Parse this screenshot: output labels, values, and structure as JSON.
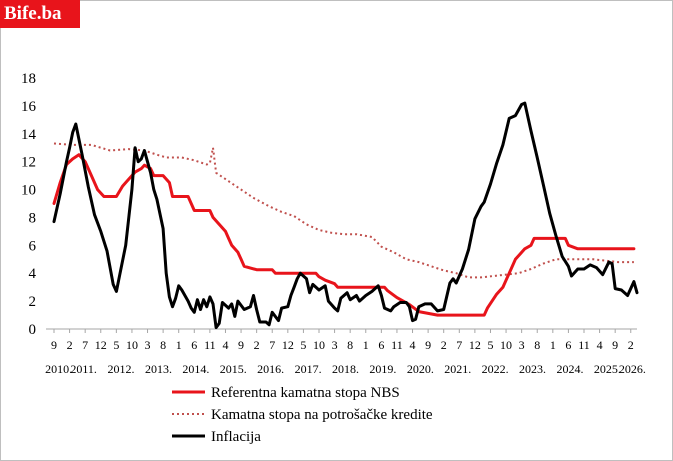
{
  "logo": {
    "text": "Bife.ba",
    "color": "#e8141b"
  },
  "chart_data": {
    "type": "line",
    "title": "",
    "xlabel": "",
    "ylabel": "",
    "ylim": [
      0,
      18
    ],
    "yticks": [
      0,
      2,
      4,
      6,
      8,
      10,
      12,
      14,
      16,
      18
    ],
    "grid": false,
    "legend_position": "bottom",
    "x_months": [
      "9",
      "2",
      "7",
      "12",
      "5",
      "10",
      "3",
      "8",
      "1",
      "6",
      "11",
      "4",
      "9",
      "2",
      "7",
      "12",
      "5",
      "10",
      "3",
      "8",
      "1",
      "6",
      "11",
      "4",
      "9",
      "2",
      "7",
      "12",
      "5",
      "10",
      "3",
      "8",
      "1",
      "6",
      "11",
      "4",
      "9",
      "2"
    ],
    "x_years": [
      "2010.",
      "2011.",
      "2012.",
      "2013.",
      "2014.",
      "2015.",
      "2016.",
      "2017.",
      "2018.",
      "2019.",
      "2020.",
      "2021.",
      "2022.",
      "2023.",
      "2024.",
      "2025.",
      "2026."
    ],
    "series": [
      {
        "name": "Referentna kamatna stopa  NBS",
        "color": "#e8141b",
        "style": "solid",
        "points": [
          [
            "2010-09",
            9.0
          ],
          [
            "2010-11",
            10.5
          ],
          [
            "2011-01",
            11.8
          ],
          [
            "2011-03",
            12.2
          ],
          [
            "2011-05",
            12.5
          ],
          [
            "2011-07",
            12.0
          ],
          [
            "2011-09",
            11.0
          ],
          [
            "2011-11",
            10.0
          ],
          [
            "2012-01",
            9.5
          ],
          [
            "2012-05",
            9.5
          ],
          [
            "2012-07",
            10.25
          ],
          [
            "2012-09",
            10.75
          ],
          [
            "2012-11",
            11.25
          ],
          [
            "2013-01",
            11.5
          ],
          [
            "2013-02",
            11.75
          ],
          [
            "2013-04",
            11.5
          ],
          [
            "2013-05",
            11.0
          ],
          [
            "2013-08",
            11.0
          ],
          [
            "2013-10",
            10.5
          ],
          [
            "2013-11",
            9.5
          ],
          [
            "2014-04",
            9.5
          ],
          [
            "2014-06",
            8.5
          ],
          [
            "2014-11",
            8.5
          ],
          [
            "2014-12",
            8.0
          ],
          [
            "2015-04",
            7.0
          ],
          [
            "2015-05",
            6.5
          ],
          [
            "2015-06",
            6.0
          ],
          [
            "2015-08",
            5.5
          ],
          [
            "2015-09",
            5.0
          ],
          [
            "2015-10",
            4.5
          ],
          [
            "2016-02",
            4.25
          ],
          [
            "2016-07",
            4.25
          ],
          [
            "2016-08",
            4.0
          ],
          [
            "2017-09",
            4.0
          ],
          [
            "2017-10",
            3.75
          ],
          [
            "2017-12",
            3.5
          ],
          [
            "2018-03",
            3.25
          ],
          [
            "2018-04",
            3.0
          ],
          [
            "2019-07",
            3.0
          ],
          [
            "2019-08",
            2.75
          ],
          [
            "2019-11",
            2.25
          ],
          [
            "2020-03",
            1.75
          ],
          [
            "2020-06",
            1.25
          ],
          [
            "2020-12",
            1.0
          ],
          [
            "2022-03",
            1.0
          ],
          [
            "2022-04",
            1.5
          ],
          [
            "2022-07",
            2.5
          ],
          [
            "2022-09",
            3.0
          ],
          [
            "2022-11",
            4.0
          ],
          [
            "2023-01",
            5.0
          ],
          [
            "2023-04",
            5.75
          ],
          [
            "2023-06",
            6.0
          ],
          [
            "2023-07",
            6.5
          ],
          [
            "2024-05",
            6.5
          ],
          [
            "2024-06",
            6.0
          ],
          [
            "2024-09",
            5.75
          ],
          [
            "2026-03",
            5.75
          ]
        ]
      },
      {
        "name": "Kamatna stopa na potrošačke kredite",
        "color": "#c0504d",
        "style": "dotted",
        "points": [
          [
            "2010-09",
            13.3
          ],
          [
            "2011-03",
            13.2
          ],
          [
            "2011-09",
            13.2
          ],
          [
            "2012-03",
            12.8
          ],
          [
            "2012-09",
            12.9
          ],
          [
            "2013-02",
            12.8
          ],
          [
            "2013-06",
            12.5
          ],
          [
            "2013-09",
            12.3
          ],
          [
            "2014-02",
            12.3
          ],
          [
            "2014-06",
            12.1
          ],
          [
            "2014-10",
            11.8
          ],
          [
            "2014-11",
            11.9
          ],
          [
            "2014-12",
            13.0
          ],
          [
            "2015-01",
            11.2
          ],
          [
            "2015-05",
            10.6
          ],
          [
            "2015-09",
            10.0
          ],
          [
            "2016-01",
            9.4
          ],
          [
            "2016-06",
            8.8
          ],
          [
            "2016-10",
            8.4
          ],
          [
            "2017-02",
            8.1
          ],
          [
            "2017-06",
            7.5
          ],
          [
            "2017-10",
            7.1
          ],
          [
            "2018-02",
            6.9
          ],
          [
            "2018-06",
            6.8
          ],
          [
            "2018-10",
            6.8
          ],
          [
            "2019-03",
            6.6
          ],
          [
            "2019-06",
            5.9
          ],
          [
            "2019-10",
            5.5
          ],
          [
            "2020-02",
            5.0
          ],
          [
            "2020-06",
            4.8
          ],
          [
            "2020-10",
            4.5
          ],
          [
            "2021-02",
            4.2
          ],
          [
            "2021-06",
            4.0
          ],
          [
            "2021-10",
            3.7
          ],
          [
            "2022-02",
            3.7
          ],
          [
            "2022-06",
            3.8
          ],
          [
            "2022-10",
            3.9
          ],
          [
            "2023-02",
            4.0
          ],
          [
            "2023-06",
            4.3
          ],
          [
            "2023-10",
            4.7
          ],
          [
            "2024-02",
            5.0
          ],
          [
            "2024-06",
            5.0
          ],
          [
            "2024-10",
            5.0
          ],
          [
            "2025-02",
            5.0
          ],
          [
            "2025-06",
            4.9
          ],
          [
            "2025-10",
            4.8
          ],
          [
            "2026-03",
            4.8
          ]
        ]
      },
      {
        "name": "Inflacija",
        "color": "#000000",
        "style": "solid",
        "points": [
          [
            "2010-09",
            7.7
          ],
          [
            "2010-11",
            9.7
          ],
          [
            "2011-01",
            12.0
          ],
          [
            "2011-02",
            13.0
          ],
          [
            "2011-03",
            14.1
          ],
          [
            "2011-04",
            14.7
          ],
          [
            "2011-06",
            12.5
          ],
          [
            "2011-08",
            10.2
          ],
          [
            "2011-10",
            8.2
          ],
          [
            "2011-12",
            7.0
          ],
          [
            "2012-02",
            5.6
          ],
          [
            "2012-04",
            3.2
          ],
          [
            "2012-05",
            2.7
          ],
          [
            "2012-06",
            3.8
          ],
          [
            "2012-08",
            6.0
          ],
          [
            "2012-10",
            10.0
          ],
          [
            "2012-11",
            13.0
          ],
          [
            "2012-12",
            12.0
          ],
          [
            "2013-01",
            12.2
          ],
          [
            "2013-02",
            12.8
          ],
          [
            "2013-03",
            12.0
          ],
          [
            "2013-04",
            11.2
          ],
          [
            "2013-05",
            10.0
          ],
          [
            "2013-06",
            9.3
          ],
          [
            "2013-08",
            7.2
          ],
          [
            "2013-09",
            4.0
          ],
          [
            "2013-10",
            2.3
          ],
          [
            "2013-11",
            1.6
          ],
          [
            "2013-12",
            2.2
          ],
          [
            "2014-01",
            3.1
          ],
          [
            "2014-02",
            2.8
          ],
          [
            "2014-04",
            2.0
          ],
          [
            "2014-05",
            1.5
          ],
          [
            "2014-06",
            1.2
          ],
          [
            "2014-07",
            2.1
          ],
          [
            "2014-08",
            1.4
          ],
          [
            "2014-09",
            2.1
          ],
          [
            "2014-10",
            1.6
          ],
          [
            "2014-11",
            2.3
          ],
          [
            "2014-12",
            1.8
          ],
          [
            "2015-01",
            0.1
          ],
          [
            "2015-02",
            0.4
          ],
          [
            "2015-03",
            1.9
          ],
          [
            "2015-05",
            1.5
          ],
          [
            "2015-06",
            1.8
          ],
          [
            "2015-07",
            0.9
          ],
          [
            "2015-08",
            2.0
          ],
          [
            "2015-10",
            1.4
          ],
          [
            "2015-12",
            1.6
          ],
          [
            "2016-01",
            2.4
          ],
          [
            "2016-02",
            1.4
          ],
          [
            "2016-03",
            0.5
          ],
          [
            "2016-05",
            0.5
          ],
          [
            "2016-06",
            0.3
          ],
          [
            "2016-07",
            1.2
          ],
          [
            "2016-09",
            0.6
          ],
          [
            "2016-10",
            1.5
          ],
          [
            "2016-12",
            1.6
          ],
          [
            "2017-01",
            2.4
          ],
          [
            "2017-02",
            3.0
          ],
          [
            "2017-03",
            3.6
          ],
          [
            "2017-04",
            4.0
          ],
          [
            "2017-06",
            3.6
          ],
          [
            "2017-07",
            2.6
          ],
          [
            "2017-08",
            3.2
          ],
          [
            "2017-10",
            2.8
          ],
          [
            "2017-12",
            3.1
          ],
          [
            "2018-01",
            2.0
          ],
          [
            "2018-03",
            1.5
          ],
          [
            "2018-04",
            1.3
          ],
          [
            "2018-05",
            2.2
          ],
          [
            "2018-07",
            2.6
          ],
          [
            "2018-08",
            2.1
          ],
          [
            "2018-10",
            2.4
          ],
          [
            "2018-11",
            2.0
          ],
          [
            "2019-01",
            2.4
          ],
          [
            "2019-03",
            2.7
          ],
          [
            "2019-05",
            3.1
          ],
          [
            "2019-06",
            2.4
          ],
          [
            "2019-07",
            1.5
          ],
          [
            "2019-09",
            1.3
          ],
          [
            "2019-10",
            1.6
          ],
          [
            "2019-12",
            1.9
          ],
          [
            "2020-02",
            1.9
          ],
          [
            "2020-03",
            1.6
          ],
          [
            "2020-04",
            0.6
          ],
          [
            "2020-05",
            0.7
          ],
          [
            "2020-06",
            1.6
          ],
          [
            "2020-08",
            1.8
          ],
          [
            "2020-10",
            1.8
          ],
          [
            "2020-12",
            1.3
          ],
          [
            "2021-02",
            1.4
          ],
          [
            "2021-04",
            3.3
          ],
          [
            "2021-05",
            3.6
          ],
          [
            "2021-06",
            3.3
          ],
          [
            "2021-08",
            4.3
          ],
          [
            "2021-10",
            5.7
          ],
          [
            "2021-12",
            7.9
          ],
          [
            "2022-02",
            8.8
          ],
          [
            "2022-03",
            9.1
          ],
          [
            "2022-05",
            10.4
          ],
          [
            "2022-07",
            11.9
          ],
          [
            "2022-09",
            13.2
          ],
          [
            "2022-11",
            15.1
          ],
          [
            "2023-01",
            15.3
          ],
          [
            "2023-03",
            16.1
          ],
          [
            "2023-04",
            16.2
          ],
          [
            "2023-06",
            14.2
          ],
          [
            "2023-08",
            12.3
          ],
          [
            "2023-10",
            10.3
          ],
          [
            "2023-12",
            8.3
          ],
          [
            "2024-02",
            6.7
          ],
          [
            "2024-04",
            5.2
          ],
          [
            "2024-06",
            4.5
          ],
          [
            "2024-07",
            3.8
          ],
          [
            "2024-09",
            4.3
          ],
          [
            "2024-11",
            4.3
          ],
          [
            "2025-01",
            4.6
          ],
          [
            "2025-03",
            4.4
          ],
          [
            "2025-05",
            3.9
          ],
          [
            "2025-07",
            4.8
          ],
          [
            "2025-08",
            4.7
          ],
          [
            "2025-09",
            2.9
          ],
          [
            "2025-11",
            2.8
          ],
          [
            "2026-01",
            2.4
          ],
          [
            "2026-03",
            3.4
          ],
          [
            "2026-04",
            2.6
          ]
        ]
      }
    ]
  }
}
